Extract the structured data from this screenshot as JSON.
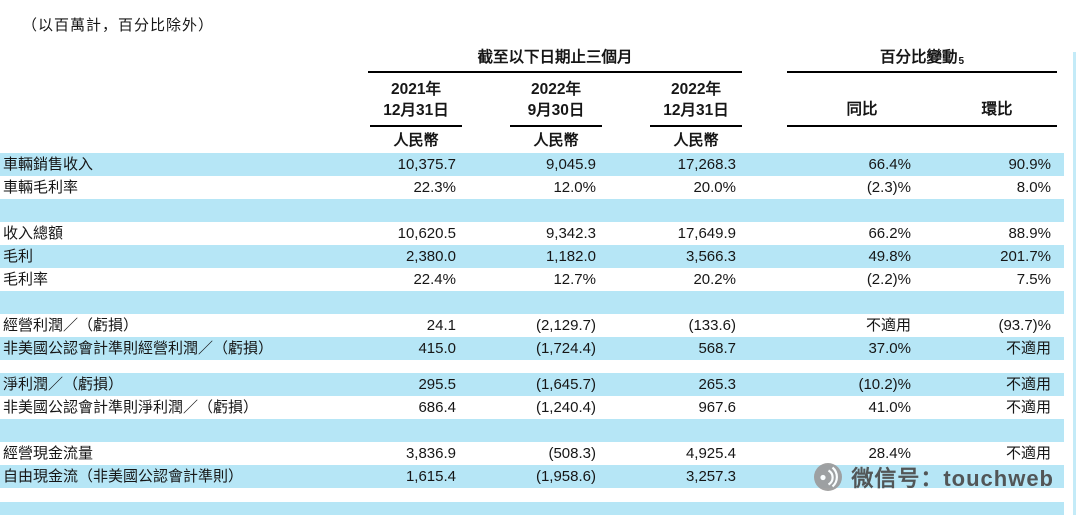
{
  "note": "（以百萬計，百分比除外）",
  "colors": {
    "highlight": "#b6e6f6",
    "header_line": "#000000",
    "watermark_text": "#4a4a4a"
  },
  "watermark": {
    "text": "微信号：touchweb",
    "icon": "broadcast-signal-icon"
  },
  "table": {
    "group_headers": [
      {
        "label": "截至以下日期止三個月",
        "sup": ""
      },
      {
        "label": "百分比變動",
        "sup": "5"
      }
    ],
    "column_headers": [
      {
        "line1": "2021年",
        "line2": "12月31日",
        "sub": "人民幣"
      },
      {
        "line1": "2022年",
        "line2": "9月30日",
        "sub": "人民幣"
      },
      {
        "line1": "2022年",
        "line2": "12月31日",
        "sub": "人民幣"
      },
      {
        "label": "同比"
      },
      {
        "label": "環比"
      }
    ],
    "rows": [
      {
        "label": "車輛銷售收入",
        "v": [
          "10,375.7",
          "9,045.9",
          "17,268.3",
          "66.4%",
          "90.9%"
        ],
        "hl": true
      },
      {
        "label": "車輛毛利率",
        "v": [
          "22.3%",
          "12.0%",
          "20.0%",
          "(2.3)%",
          "8.0%"
        ],
        "hl": false
      },
      {
        "label": "",
        "v": [
          "",
          "",
          "",
          "",
          ""
        ],
        "hl": true,
        "sep": true
      },
      {
        "label": "收入總額",
        "v": [
          "10,620.5",
          "9,342.3",
          "17,649.9",
          "66.2%",
          "88.9%"
        ],
        "hl": false
      },
      {
        "label": "毛利",
        "v": [
          "2,380.0",
          "1,182.0",
          "3,566.3",
          "49.8%",
          "201.7%"
        ],
        "hl": true
      },
      {
        "label": "毛利率",
        "v": [
          "22.4%",
          "12.7%",
          "20.2%",
          "(2.2)%",
          "7.5%"
        ],
        "hl": false
      },
      {
        "label": "",
        "v": [
          "",
          "",
          "",
          "",
          ""
        ],
        "hl": true,
        "sep": true
      },
      {
        "label": "經營利潤／（虧損）",
        "v": [
          "24.1",
          "(2,129.7)",
          "(133.6)",
          "不適用",
          "(93.7)%"
        ],
        "hl": false
      },
      {
        "label": "非美國公認會計準則經營利潤／（虧損）",
        "v": [
          "415.0",
          "(1,724.4)",
          "568.7",
          "37.0%",
          "不適用"
        ],
        "hl": true
      },
      {
        "label": "",
        "v": [
          "",
          "",
          "",
          "",
          ""
        ],
        "hl": false,
        "sep": true,
        "thin": true
      },
      {
        "label": "淨利潤／（虧損）",
        "v": [
          "295.5",
          "(1,645.7)",
          "265.3",
          "(10.2)%",
          "不適用"
        ],
        "hl": true
      },
      {
        "label": "非美國公認會計準則淨利潤／（虧損）",
        "v": [
          "686.4",
          "(1,240.4)",
          "967.6",
          "41.0%",
          "不適用"
        ],
        "hl": false
      },
      {
        "label": "",
        "v": [
          "",
          "",
          "",
          "",
          ""
        ],
        "hl": true,
        "sep": true
      },
      {
        "label": "經營現金流量",
        "v": [
          "3,836.9",
          "(508.3)",
          "4,925.4",
          "28.4%",
          "不適用"
        ],
        "hl": false
      },
      {
        "label": "自由現金流（非美國公認會計準則）",
        "v": [
          "1,615.4",
          "(1,958.6)",
          "3,257.3",
          "",
          ""
        ],
        "hl": true
      }
    ]
  }
}
